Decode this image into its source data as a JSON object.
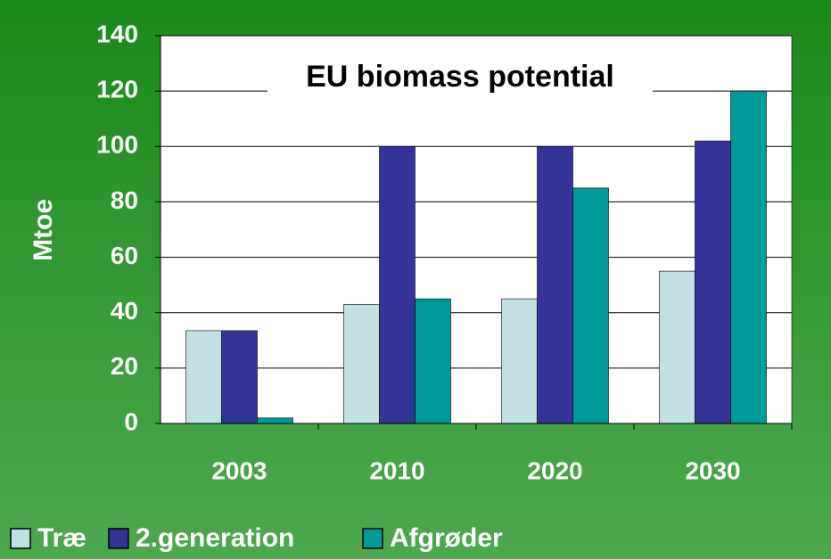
{
  "chart_data": {
    "type": "bar",
    "title": "EU biomass potential",
    "y_label": "Mtoe",
    "categories": [
      "2003",
      "2010",
      "2020",
      "2030"
    ],
    "series": [
      {
        "name": "Træ",
        "color": "#c0e0e4",
        "values": [
          33.5,
          43,
          45,
          55
        ]
      },
      {
        "name": "2.generation",
        "color": "#333399",
        "values": [
          33.5,
          100,
          100,
          102
        ]
      },
      {
        "name": "Afgrøder",
        "color": "#009999",
        "values": [
          2,
          45,
          85,
          120
        ]
      }
    ],
    "ylim": [
      0,
      140
    ],
    "yticks": [
      0,
      20,
      40,
      60,
      80,
      100,
      120,
      140
    ],
    "grid": true
  }
}
